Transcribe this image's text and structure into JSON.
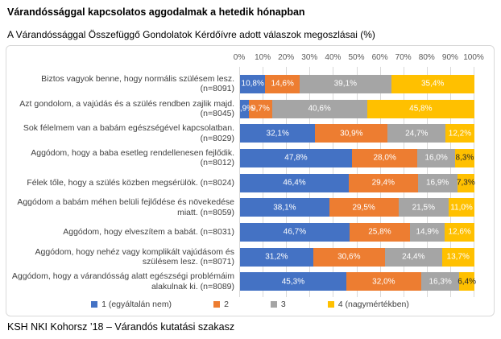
{
  "page": {
    "title": "Várandóssággal kapcsolatos aggodalmak a hetedik hónapban",
    "subtitle": "A Várandóssággal Összefüggő Gondolatok Kérdőívre adott válaszok megoszlásai (%)",
    "footer": "KSH NKI Kohorsz ’18 – Várandós kutatási szakasz"
  },
  "chart_data": {
    "type": "bar",
    "orientation": "horizontal",
    "stacked": true,
    "unit": "%",
    "title": "A Várandóssággal Összefüggő Gondolatok Kérdőívre adott válaszok megoszlásai (%)",
    "x_axis": {
      "min": 0,
      "max": 100,
      "tick_step": 10,
      "tick_labels": [
        "0%",
        "10%",
        "20%",
        "30%",
        "40%",
        "50%",
        "60%",
        "70%",
        "80%",
        "90%",
        "100%"
      ],
      "grid": true,
      "position": "top"
    },
    "categories": [
      "Biztos vagyok benne, hogy normális szülésem lesz. (n=8091)",
      "Azt gondolom, a vajúdás és a szülés rendben zajlik majd. (n=8045)",
      "Sok félelmem van a babám egészségével kapcsolatban. (n=8029)",
      "Aggódom, hogy a baba esetleg rendellenesen fejlődik. (n=8012)",
      "Félek tőle, hogy a szülés közben megsérülök. (n=8024)",
      "Aggódom a babám méhen belüli fejlődése és növekedése miatt. (n=8059)",
      "Aggódom, hogy elveszítem a babát. (n=8031)",
      "Aggódom, hogy nehéz vagy komplikált vajúdásom és szülésem lesz. (n=8071)",
      "Aggódom, hogy a várandósság alatt egészségi problémáim alakulnak ki. (n=8089)"
    ],
    "series": [
      {
        "name": "1 (egyáltalán nem)",
        "color": "#4472C4",
        "values": [
          10.8,
          3.9,
          32.1,
          47.8,
          46.4,
          38.1,
          46.7,
          31.2,
          45.3
        ]
      },
      {
        "name": "2",
        "color": "#ED7D31",
        "values": [
          14.6,
          9.7,
          30.9,
          28.0,
          29.4,
          29.5,
          25.8,
          30.6,
          32.0
        ]
      },
      {
        "name": "3",
        "color": "#A5A5A5",
        "values": [
          39.1,
          40.6,
          24.7,
          16.0,
          16.9,
          21.5,
          14.9,
          24.4,
          16.3
        ]
      },
      {
        "name": "4 (nagymértékben)",
        "color": "#FFC000",
        "values": [
          35.4,
          45.8,
          12.2,
          8.3,
          7.3,
          11.0,
          12.6,
          13.7,
          6.4
        ]
      }
    ],
    "legend": {
      "position": "bottom",
      "labels": [
        "1 (egyáltalán nem)",
        "2",
        "3",
        "4 (nagymértékben)"
      ]
    },
    "data_labels": {
      "decimal_separator": ",",
      "decimals": 1,
      "suffix": "%",
      "inside_color": "#FFFFFF",
      "small_segment_color": "#262626"
    },
    "style": {
      "gridline_color": "#D9D9D9",
      "frame_border_color": "#D9D9D9",
      "axis_text_color": "#595959"
    }
  }
}
